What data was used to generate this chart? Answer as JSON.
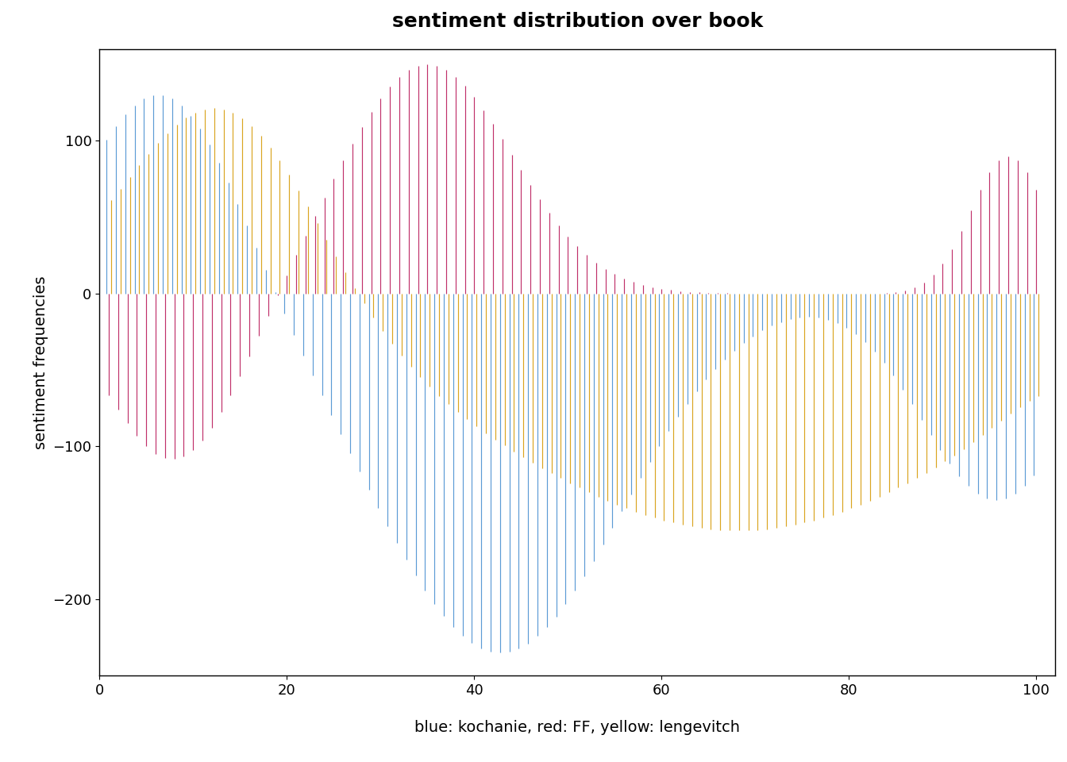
{
  "title": "sentiment distribution over book",
  "ylabel": "sentiment frequencies",
  "xlabel": "blue: kochanie, red: FF, yellow: lengevitch",
  "xlim": [
    0,
    102
  ],
  "ylim": [
    -250,
    160
  ],
  "yticks": [
    -200,
    -100,
    0,
    100
  ],
  "xticks": [
    0,
    20,
    40,
    60,
    80,
    100
  ],
  "n_points": 100,
  "blue_color": "#5B9BD5",
  "red_color": "#C0306A",
  "yellow_color": "#DAA520",
  "background": "#ffffff",
  "title_fontsize": 18,
  "label_fontsize": 14,
  "tick_fontsize": 13
}
